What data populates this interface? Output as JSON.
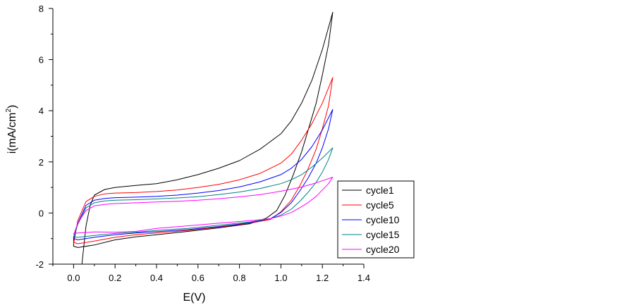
{
  "chart_data": {
    "type": "line",
    "xlabel": "E(V)",
    "ylabel_main": "i(mA/cm",
    "ylabel_sup": "2",
    "ylabel_close": ")",
    "xlim": [
      -0.1,
      1.4
    ],
    "ylim": [
      -2,
      8
    ],
    "xticks": [
      0.0,
      0.2,
      0.4,
      0.6,
      0.8,
      1.0,
      1.2,
      1.4
    ],
    "xtick_labels": [
      "0.0",
      "0.2",
      "0.4",
      "0.6",
      "0.8",
      "1.0",
      "1.2",
      "1.4"
    ],
    "yticks": [
      -2,
      0,
      2,
      4,
      6,
      8
    ],
    "ytick_labels": [
      "-2",
      "0",
      "2",
      "4",
      "6",
      "8"
    ],
    "grid": false,
    "legend_position": "lower-right",
    "series": [
      {
        "name": "cycle1",
        "color": "#000000",
        "points": [
          [
            0.04,
            -2.0
          ],
          [
            0.06,
            -0.5
          ],
          [
            0.08,
            0.3
          ],
          [
            0.1,
            0.7
          ],
          [
            0.15,
            0.92
          ],
          [
            0.2,
            1.0
          ],
          [
            0.3,
            1.08
          ],
          [
            0.4,
            1.15
          ],
          [
            0.5,
            1.3
          ],
          [
            0.6,
            1.5
          ],
          [
            0.7,
            1.75
          ],
          [
            0.8,
            2.05
          ],
          [
            0.9,
            2.5
          ],
          [
            1.0,
            3.1
          ],
          [
            1.05,
            3.6
          ],
          [
            1.1,
            4.3
          ],
          [
            1.15,
            5.2
          ],
          [
            1.2,
            6.4
          ],
          [
            1.25,
            7.85
          ],
          [
            1.23,
            6.6
          ],
          [
            1.2,
            5.4
          ],
          [
            1.17,
            4.3
          ],
          [
            1.13,
            3.2
          ],
          [
            1.1,
            2.4
          ],
          [
            1.06,
            1.5
          ],
          [
            1.02,
            0.7
          ],
          [
            0.98,
            0.1
          ],
          [
            0.93,
            -0.2
          ],
          [
            0.85,
            -0.42
          ],
          [
            0.7,
            -0.58
          ],
          [
            0.55,
            -0.72
          ],
          [
            0.4,
            -0.85
          ],
          [
            0.3,
            -0.93
          ],
          [
            0.2,
            -1.05
          ],
          [
            0.1,
            -1.25
          ],
          [
            0.02,
            -1.35
          ],
          [
            0.0,
            -1.3
          ],
          [
            0.0,
            -0.9
          ]
        ]
      },
      {
        "name": "cycle5",
        "color": "#ff0000",
        "points": [
          [
            0.0,
            -1.2
          ],
          [
            0.02,
            -0.3
          ],
          [
            0.06,
            0.45
          ],
          [
            0.1,
            0.65
          ],
          [
            0.15,
            0.75
          ],
          [
            0.2,
            0.78
          ],
          [
            0.3,
            0.8
          ],
          [
            0.4,
            0.84
          ],
          [
            0.5,
            0.9
          ],
          [
            0.6,
            1.0
          ],
          [
            0.7,
            1.12
          ],
          [
            0.8,
            1.3
          ],
          [
            0.9,
            1.55
          ],
          [
            1.0,
            1.95
          ],
          [
            1.05,
            2.3
          ],
          [
            1.1,
            2.85
          ],
          [
            1.15,
            3.5
          ],
          [
            1.2,
            4.3
          ],
          [
            1.25,
            5.3
          ],
          [
            1.23,
            4.2
          ],
          [
            1.2,
            3.3
          ],
          [
            1.17,
            2.5
          ],
          [
            1.13,
            1.7
          ],
          [
            1.09,
            1.05
          ],
          [
            1.05,
            0.5
          ],
          [
            1.0,
            0.05
          ],
          [
            0.95,
            -0.25
          ],
          [
            0.85,
            -0.4
          ],
          [
            0.7,
            -0.55
          ],
          [
            0.55,
            -0.68
          ],
          [
            0.4,
            -0.78
          ],
          [
            0.3,
            -0.85
          ],
          [
            0.2,
            -0.95
          ],
          [
            0.1,
            -1.1
          ],
          [
            0.02,
            -1.2
          ],
          [
            0.0,
            -1.15
          ]
        ]
      },
      {
        "name": "cycle10",
        "color": "#0000ff",
        "points": [
          [
            0.0,
            -1.05
          ],
          [
            0.02,
            -0.4
          ],
          [
            0.06,
            0.3
          ],
          [
            0.1,
            0.5
          ],
          [
            0.15,
            0.57
          ],
          [
            0.2,
            0.6
          ],
          [
            0.3,
            0.62
          ],
          [
            0.4,
            0.65
          ],
          [
            0.5,
            0.7
          ],
          [
            0.6,
            0.78
          ],
          [
            0.7,
            0.88
          ],
          [
            0.8,
            1.02
          ],
          [
            0.9,
            1.22
          ],
          [
            1.0,
            1.5
          ],
          [
            1.05,
            1.75
          ],
          [
            1.1,
            2.1
          ],
          [
            1.15,
            2.6
          ],
          [
            1.2,
            3.25
          ],
          [
            1.25,
            4.05
          ],
          [
            1.23,
            3.3
          ],
          [
            1.2,
            2.55
          ],
          [
            1.17,
            1.95
          ],
          [
            1.13,
            1.35
          ],
          [
            1.09,
            0.85
          ],
          [
            1.05,
            0.4
          ],
          [
            1.0,
            0.02
          ],
          [
            0.95,
            -0.22
          ],
          [
            0.85,
            -0.38
          ],
          [
            0.7,
            -0.53
          ],
          [
            0.55,
            -0.65
          ],
          [
            0.4,
            -0.73
          ],
          [
            0.3,
            -0.78
          ],
          [
            0.2,
            -0.85
          ],
          [
            0.1,
            -0.95
          ],
          [
            0.02,
            -1.05
          ],
          [
            0.0,
            -1.0
          ]
        ]
      },
      {
        "name": "cycle15",
        "color": "#008080",
        "points": [
          [
            0.0,
            -0.95
          ],
          [
            0.02,
            -0.45
          ],
          [
            0.06,
            0.2
          ],
          [
            0.1,
            0.4
          ],
          [
            0.15,
            0.47
          ],
          [
            0.2,
            0.5
          ],
          [
            0.3,
            0.52
          ],
          [
            0.4,
            0.55
          ],
          [
            0.5,
            0.59
          ],
          [
            0.6,
            0.64
          ],
          [
            0.7,
            0.72
          ],
          [
            0.8,
            0.82
          ],
          [
            0.9,
            0.96
          ],
          [
            1.0,
            1.15
          ],
          [
            1.05,
            1.3
          ],
          [
            1.1,
            1.5
          ],
          [
            1.15,
            1.8
          ],
          [
            1.2,
            2.15
          ],
          [
            1.25,
            2.55
          ],
          [
            1.23,
            2.1
          ],
          [
            1.2,
            1.6
          ],
          [
            1.17,
            1.2
          ],
          [
            1.13,
            0.8
          ],
          [
            1.09,
            0.45
          ],
          [
            1.05,
            0.15
          ],
          [
            1.0,
            -0.08
          ],
          [
            0.95,
            -0.22
          ],
          [
            0.85,
            -0.35
          ],
          [
            0.7,
            -0.48
          ],
          [
            0.55,
            -0.6
          ],
          [
            0.4,
            -0.68
          ],
          [
            0.3,
            -0.75
          ],
          [
            0.2,
            -0.8
          ],
          [
            0.1,
            -0.88
          ],
          [
            0.02,
            -0.95
          ],
          [
            0.0,
            -0.93
          ]
        ]
      },
      {
        "name": "cycle20",
        "color": "#ff00ff",
        "points": [
          [
            0.0,
            -0.85
          ],
          [
            0.02,
            -0.4
          ],
          [
            0.06,
            0.1
          ],
          [
            0.1,
            0.28
          ],
          [
            0.15,
            0.34
          ],
          [
            0.2,
            0.37
          ],
          [
            0.3,
            0.4
          ],
          [
            0.4,
            0.43
          ],
          [
            0.5,
            0.46
          ],
          [
            0.6,
            0.5
          ],
          [
            0.7,
            0.56
          ],
          [
            0.8,
            0.63
          ],
          [
            0.9,
            0.72
          ],
          [
            1.0,
            0.85
          ],
          [
            1.05,
            0.93
          ],
          [
            1.1,
            1.02
          ],
          [
            1.15,
            1.13
          ],
          [
            1.2,
            1.26
          ],
          [
            1.25,
            1.4
          ],
          [
            1.23,
            1.15
          ],
          [
            1.2,
            0.9
          ],
          [
            1.17,
            0.65
          ],
          [
            1.13,
            0.4
          ],
          [
            1.09,
            0.2
          ],
          [
            1.05,
            0.02
          ],
          [
            1.0,
            -0.12
          ],
          [
            0.95,
            -0.22
          ],
          [
            0.85,
            -0.3
          ],
          [
            0.7,
            -0.4
          ],
          [
            0.55,
            -0.5
          ],
          [
            0.4,
            -0.6
          ],
          [
            0.3,
            -0.72
          ],
          [
            0.2,
            -0.75
          ],
          [
            0.1,
            -0.74
          ],
          [
            0.02,
            -0.78
          ],
          [
            0.0,
            -0.8
          ]
        ]
      }
    ]
  }
}
